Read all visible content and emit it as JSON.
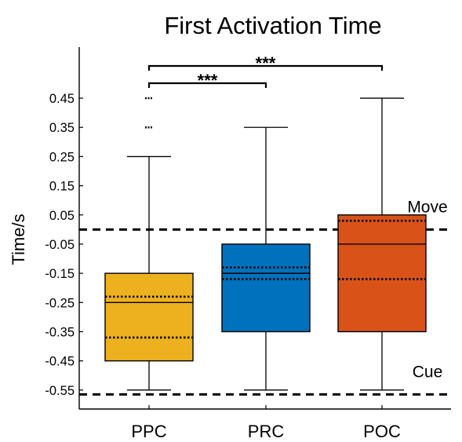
{
  "chart_data": {
    "type": "box",
    "title": "First Activation Time",
    "ylabel": "Time/s",
    "xlabel": "",
    "ylim": [
      -0.615,
      0.625
    ],
    "yticks": [
      "0.45",
      "0.35",
      "0.25",
      "0.15",
      "0.05",
      "-0.05",
      "-0.15",
      "-0.25",
      "-0.35",
      "-0.45",
      "-0.55"
    ],
    "ytick_values": [
      0.45,
      0.35,
      0.25,
      0.15,
      0.05,
      -0.05,
      -0.15,
      -0.25,
      -0.35,
      -0.45,
      -0.55
    ],
    "categories": [
      "PPC",
      "PRC",
      "POC"
    ],
    "boxes": [
      {
        "label": "PPC",
        "color": "#EDB120",
        "q1": -0.45,
        "median": -0.25,
        "q3": -0.15,
        "whisker_low": -0.55,
        "whisker_high": 0.25,
        "dotted_lines": [
          -0.23,
          -0.37
        ],
        "outliers": [
          0.45,
          0.35
        ]
      },
      {
        "label": "PRC",
        "color": "#0072BD",
        "q1": -0.35,
        "median": -0.15,
        "q3": -0.05,
        "whisker_low": -0.55,
        "whisker_high": 0.35,
        "dotted_lines": [
          -0.13,
          -0.17
        ],
        "outliers": []
      },
      {
        "label": "POC",
        "color": "#D95319",
        "q1": -0.35,
        "median": -0.05,
        "q3": 0.05,
        "whisker_low": -0.55,
        "whisker_high": 0.45,
        "dotted_lines": [
          0.03,
          -0.17
        ],
        "outliers": []
      }
    ],
    "reference_lines": [
      {
        "label": "Move",
        "y": 0.0
      },
      {
        "label": "Cue",
        "y": -0.565
      }
    ],
    "significance": [
      {
        "from": "PPC",
        "to": "PRC",
        "label": "***"
      },
      {
        "from": "PPC",
        "to": "POC",
        "label": "***"
      }
    ]
  }
}
